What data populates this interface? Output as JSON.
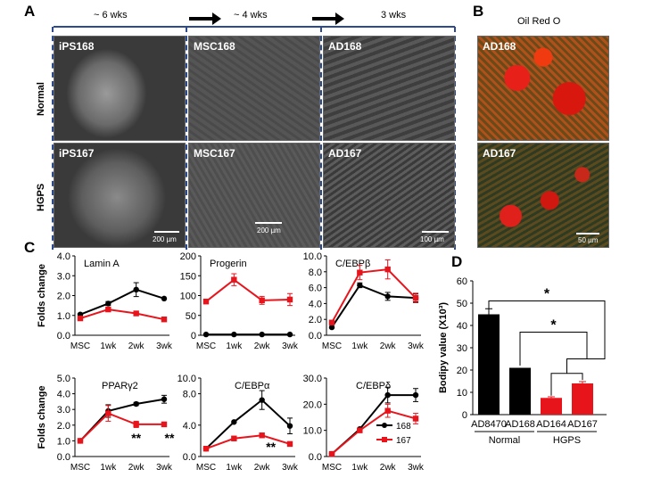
{
  "panels": {
    "A": "A",
    "B": "B",
    "C": "C",
    "D": "D"
  },
  "timeline": {
    "p1": "~ 6 wks",
    "p2": "~ 4 wks",
    "p3": "3 wks"
  },
  "rows": {
    "normal": "Normal",
    "hgps": "HGPS"
  },
  "micro": {
    "ips168": "iPS168",
    "msc168": "MSC168",
    "ad168": "AD168",
    "ips167": "iPS167",
    "msc167": "MSC167",
    "ad167": "AD167",
    "scale1": "200 µm",
    "scale2": "200 µm",
    "scale3": "100 µm",
    "oro_title": "Oil Red O",
    "oro168": "AD168",
    "oro167": "AD167",
    "scale4": "50 µm"
  },
  "colors": {
    "normal": "#000000",
    "hgps": "#e8141c"
  },
  "chart_data": [
    {
      "type": "line",
      "title": "Lamin A",
      "categories": [
        "MSC",
        "1wk",
        "2wk",
        "3wk"
      ],
      "ylabel": "Folds change",
      "ylim": [
        0,
        4
      ],
      "yticks": [
        "0.0",
        "1.0",
        "2.0",
        "3.0",
        "4.0"
      ],
      "series": [
        {
          "name": "168",
          "values": [
            1.05,
            1.6,
            2.3,
            1.85
          ],
          "err": [
            0.05,
            0.1,
            0.35,
            0
          ]
        },
        {
          "name": "167",
          "values": [
            0.85,
            1.3,
            1.1,
            0.8
          ],
          "err": [
            0.05,
            0.05,
            0.05,
            0.05
          ]
        }
      ]
    },
    {
      "type": "line",
      "title": "Progerin",
      "categories": [
        "MSC",
        "1wk",
        "2wk",
        "3wk"
      ],
      "ylim": [
        0,
        200
      ],
      "yticks": [
        "0",
        "50",
        "100",
        "150",
        "200"
      ],
      "series": [
        {
          "name": "168",
          "values": [
            2,
            2,
            2,
            2
          ],
          "err": [
            0,
            0,
            0,
            0
          ]
        },
        {
          "name": "167",
          "values": [
            85,
            140,
            88,
            90
          ],
          "err": [
            5,
            15,
            10,
            15
          ]
        }
      ]
    },
    {
      "type": "line",
      "title": "C/EBPβ",
      "categories": [
        "MSC",
        "1wk",
        "2wk",
        "3wk"
      ],
      "ylim": [
        0,
        10
      ],
      "yticks": [
        "0.0",
        "2.0",
        "4.0",
        "6.0",
        "8.0",
        "10.0"
      ],
      "series": [
        {
          "name": "168",
          "values": [
            1.0,
            6.3,
            4.9,
            4.7
          ],
          "err": [
            0,
            0.3,
            0.5,
            0.5
          ]
        },
        {
          "name": "167",
          "values": [
            1.6,
            7.9,
            8.3,
            4.7
          ],
          "err": [
            0.1,
            0.9,
            1.2,
            0.6
          ]
        }
      ]
    },
    {
      "type": "line",
      "title": "PPARγ2",
      "categories": [
        "MSC",
        "1wk",
        "2wk",
        "3wk"
      ],
      "ylabel": "Folds change",
      "ylim": [
        0,
        5
      ],
      "yticks": [
        "0.0",
        "1.0",
        "2.0",
        "3.0",
        "4.0",
        "5.0"
      ],
      "annotations": [
        "**",
        "**"
      ],
      "series": [
        {
          "name": "168",
          "values": [
            1.0,
            2.9,
            3.35,
            3.65
          ],
          "err": [
            0,
            0.4,
            0.1,
            0.25
          ]
        },
        {
          "name": "167",
          "values": [
            1.0,
            2.75,
            2.05,
            2.05
          ],
          "err": [
            0,
            0.5,
            0.2,
            0
          ]
        }
      ]
    },
    {
      "type": "line",
      "title": "C/EBPα",
      "categories": [
        "MSC",
        "1wk",
        "2wk",
        "3wk"
      ],
      "ylim": [
        0,
        10
      ],
      "yticks": [
        "0.0",
        "4.0",
        "8.0",
        "10.0"
      ],
      "annotations": [
        "**"
      ],
      "series": [
        {
          "name": "168",
          "values": [
            1.0,
            4.4,
            7.2,
            3.9
          ],
          "err": [
            0,
            0,
            1.2,
            1.0
          ]
        },
        {
          "name": "167",
          "values": [
            1.0,
            2.3,
            2.7,
            1.6
          ],
          "err": [
            0,
            0,
            0,
            0
          ]
        }
      ]
    },
    {
      "type": "line",
      "title": "C/EBPδ",
      "categories": [
        "MSC",
        "1wk",
        "2wk",
        "3wk"
      ],
      "ylim": [
        0,
        30
      ],
      "yticks": [
        "0.0",
        "10.0",
        "20.0",
        "30.0"
      ],
      "legend": "bottom-right",
      "series": [
        {
          "name": "168",
          "values": [
            1.0,
            10.5,
            23.5,
            23.5
          ],
          "err": [
            0,
            0,
            3.0,
            2.5
          ]
        },
        {
          "name": "167",
          "values": [
            1.0,
            10.0,
            17.5,
            14.5
          ],
          "err": [
            0,
            0,
            2.5,
            2.0
          ]
        }
      ]
    },
    {
      "type": "bar",
      "categories": [
        "AD8470",
        "AD168",
        "AD164",
        "AD167"
      ],
      "values": [
        45,
        21,
        7.5,
        14
      ],
      "err": [
        2.5,
        0,
        0.5,
        0.8
      ],
      "ylabel": "Bodipy value (X10³)",
      "ylim": [
        0,
        60
      ],
      "yticks": [
        "0",
        "10",
        "20",
        "30",
        "40",
        "50",
        "60"
      ],
      "groups": [
        "Normal",
        "HGPS"
      ],
      "annotations": [
        "*",
        "*"
      ]
    }
  ]
}
